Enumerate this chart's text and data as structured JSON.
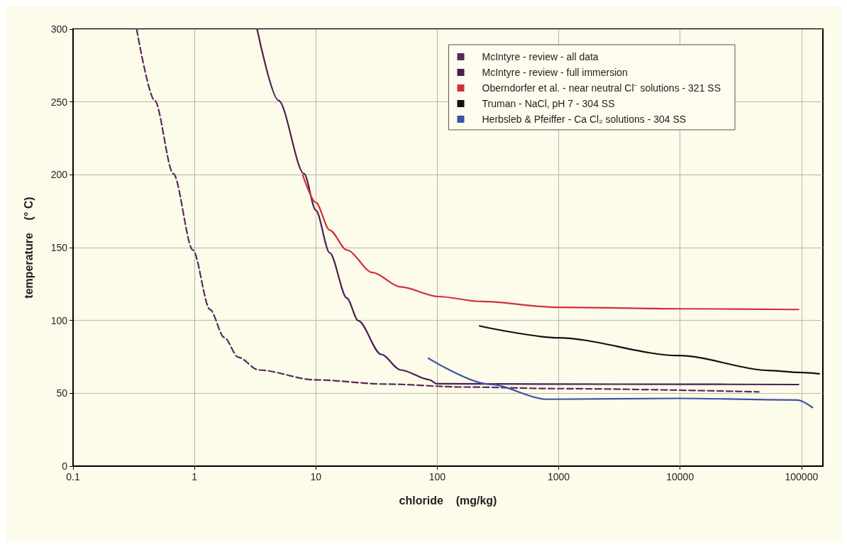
{
  "chart_data": {
    "type": "line",
    "xlabel": "chloride    (mg/kg)",
    "ylabel": "temperature    (° C)",
    "log": "x",
    "grid": true,
    "legend": "top right",
    "marker": "none",
    "xlim": [
      0.1,
      150000
    ],
    "xticks": [
      0.1,
      1,
      10,
      100,
      1000,
      10000,
      100000
    ],
    "ylim": [
      0,
      300
    ],
    "yticks": [
      0,
      50,
      100,
      150,
      200,
      250,
      300
    ],
    "series": [
      {
        "name": "McIntyre - review - all data",
        "color": "#5a2a5e",
        "line_style": "dashed",
        "x": [
          0.334,
          0.47,
          0.67,
          0.97,
          1.34,
          1.76,
          2.3,
          3.37,
          9.9,
          38,
          167,
          990,
          44500
        ],
        "values": [
          300,
          251,
          200.7,
          148.4,
          107.6,
          88.3,
          74.7,
          66,
          59.2,
          56.3,
          54.3,
          53.2,
          51
        ]
      },
      {
        "name": "McIntyre - review - full immersion",
        "color": "#4b1f52",
        "line_style": "solid",
        "x": [
          3.28,
          4.92,
          8,
          10,
          13,
          18,
          22.3,
          34.5,
          50,
          86,
          99,
          1000,
          10000,
          94600
        ],
        "values": [
          300,
          251,
          200.7,
          175.6,
          146.4,
          115.4,
          99.9,
          76.7,
          66,
          59.3,
          56.6,
          56.3,
          56.2,
          56
        ]
      },
      {
        "name": "Oberndorfer et al. - near neutral Cl⁻ solutions - 321 SS",
        "color": "#d0303a",
        "line_style": "solid",
        "x": [
          7.8,
          10,
          13,
          18,
          29.3,
          50,
          102,
          230,
          990,
          10000,
          94600
        ],
        "values": [
          199.7,
          181,
          162,
          148.3,
          132.9,
          123,
          116.4,
          113,
          109,
          108,
          107.5
        ]
      },
      {
        "name": "Truman - NaCl, pH 7 - 304 SS",
        "color": "#111111",
        "line_style": "solid",
        "x": [
          223,
          990,
          9700,
          56000,
          94600,
          140000
        ],
        "values": [
          96.2,
          88.1,
          75.9,
          65.6,
          64.3,
          63.4
        ]
      },
      {
        "name": "Herbsleb & Pfeiffer - Ca Cl₂ solutions - 304 SS",
        "color": "#3a54a8",
        "line_style": "solid",
        "x": [
          84.5,
          268,
          805,
          9700,
          93000,
          123000
        ],
        "values": [
          74,
          56.2,
          45.9,
          46.5,
          45.4,
          40.3
        ]
      }
    ]
  }
}
